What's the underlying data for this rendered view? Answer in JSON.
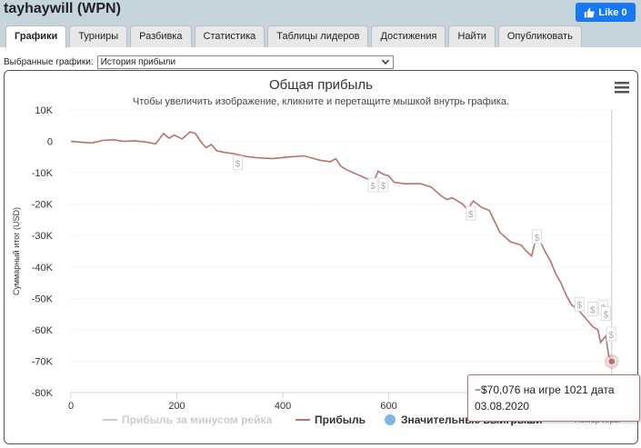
{
  "header": {
    "player_title": "tayhaywill (WPN)",
    "fb_like_label": "Like 0"
  },
  "tabs": [
    {
      "label": "Графики",
      "active": true
    },
    {
      "label": "Турниры"
    },
    {
      "label": "Разбивка"
    },
    {
      "label": "Статистика"
    },
    {
      "label": "Таблицы лидеров"
    },
    {
      "label": "Достижения"
    },
    {
      "label": "Найти"
    },
    {
      "label": "Опубликовать"
    }
  ],
  "selector": {
    "label": "Выбранные графики:",
    "value": "История прибыли"
  },
  "colors": {
    "profit_line": "#b87070",
    "rake_line": "#cccccc",
    "wins_marker": "#7cb5ec",
    "topbar": "#c6d4dc",
    "fb": "#1877f2"
  },
  "icons": {
    "menu": "hamburger-menu-icon",
    "wins": "dollar-flag-icon",
    "like": "thumbs-up-icon"
  },
  "chart_data": {
    "type": "line",
    "title": "Общая прибыль",
    "subtitle": "Чтобы увеличить изображение, кликните и перетащите мышкой внутрь графика.",
    "ylabel": "Суммарный итог (USD)",
    "xlabel": "Номер игры",
    "xlim": [
      0,
      1030
    ],
    "ylim": [
      -80000,
      10000
    ],
    "x_ticks": [
      0,
      200,
      400,
      600,
      800,
      1000
    ],
    "y_ticks": [
      10000,
      0,
      -10000,
      -20000,
      -30000,
      -40000,
      -50000,
      -60000,
      -70000,
      -80000
    ],
    "y_tick_labels": [
      "10K",
      "0",
      "-10K",
      "-20K",
      "-30K",
      "-40K",
      "-50K",
      "-60K",
      "-70K",
      "-80K"
    ],
    "grid": true,
    "legend_position": "bottom",
    "legend": [
      {
        "name": "Прибыль за минусом рейка"
      },
      {
        "name": "Прибыль"
      },
      {
        "name": "Значительные выигрыши"
      }
    ],
    "series": [
      {
        "name": "Прибыль",
        "x": [
          0,
          20,
          40,
          60,
          80,
          100,
          120,
          140,
          160,
          175,
          185,
          195,
          210,
          225,
          235,
          245,
          255,
          265,
          275,
          290,
          310,
          330,
          350,
          380,
          410,
          440,
          470,
          490,
          500,
          510,
          520,
          540,
          560,
          570,
          575,
          580,
          590,
          600,
          610,
          630,
          660,
          680,
          700,
          710,
          720,
          740,
          750,
          755,
          760,
          775,
          790,
          810,
          830,
          840,
          850,
          860,
          870,
          875,
          880,
          885,
          895,
          905,
          915,
          925,
          935,
          945,
          960,
          975,
          985,
          995,
          1000,
          1010,
          1015,
          1021
        ],
        "y": [
          0,
          -300,
          -500,
          300,
          500,
          0,
          200,
          -200,
          -800,
          2500,
          1000,
          2000,
          800,
          3000,
          2500,
          0,
          -2000,
          -1000,
          -3000,
          -3500,
          -4000,
          -4800,
          -5200,
          -5500,
          -5000,
          -4600,
          -6000,
          -6500,
          -5500,
          -8000,
          -9000,
          -10500,
          -12000,
          -12000,
          -11500,
          -9500,
          -10500,
          -11000,
          -13000,
          -13500,
          -13500,
          -14500,
          -17500,
          -18500,
          -18000,
          -20000,
          -22000,
          -20000,
          -19000,
          -21000,
          -22000,
          -29000,
          -32000,
          -32500,
          -33000,
          -35000,
          -36500,
          -33000,
          -31000,
          -31500,
          -35000,
          -38000,
          -42000,
          -45000,
          -49000,
          -52000,
          -54000,
          -57000,
          -59000,
          -60000,
          -64000,
          -62000,
          -68000,
          -70076
        ]
      },
      {
        "name": "Значительные выигрыши",
        "x": [
          315,
          570,
          590,
          755,
          880,
          960,
          985,
          1005,
          1010,
          1020
        ],
        "y": [
          -7000,
          -14000,
          -14000,
          -23000,
          -30500,
          -52000,
          -53500,
          -53000,
          -55000,
          -61500
        ]
      }
    ],
    "markers": [
      {
        "name": "Последняя точка",
        "x": 1021,
        "y": -70076
      }
    ]
  },
  "tooltip": {
    "line1": "−$70,076 на игре 1021 дата",
    "line2": "03.08.2020"
  }
}
